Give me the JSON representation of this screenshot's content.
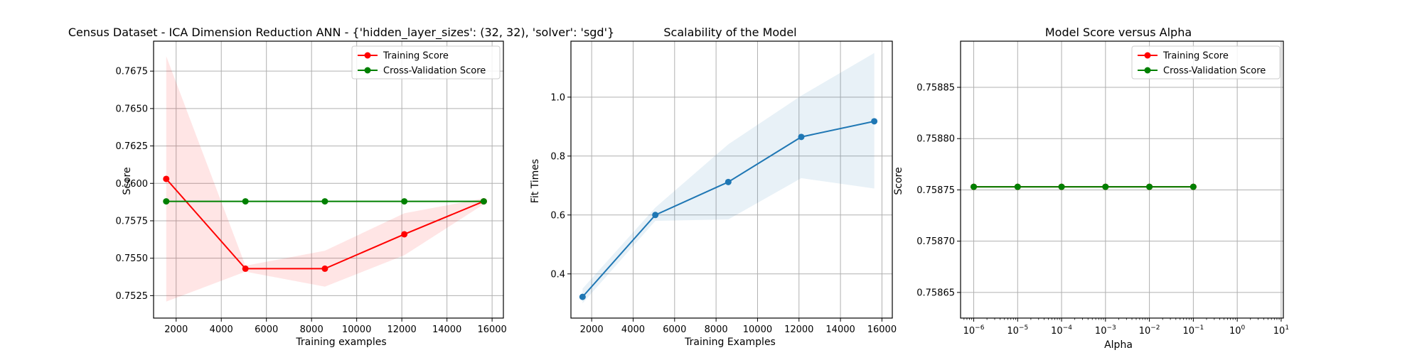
{
  "chart_data": [
    {
      "type": "line",
      "title": "Census Dataset - ICA Dimension Reduction ANN - {'hidden_layer_sizes': (32, 32), 'solver': 'sgd'}",
      "xlabel": "Training examples",
      "ylabel": "Score",
      "xlim": [
        1000,
        16500
      ],
      "ylim": [
        0.751,
        0.7695
      ],
      "grid": true,
      "legend_position": "top-right",
      "xticks": [
        2000,
        4000,
        6000,
        8000,
        10000,
        12000,
        14000,
        16000
      ],
      "yticks": [
        0.7525,
        0.755,
        0.7575,
        0.76,
        0.7625,
        0.765,
        0.7675
      ],
      "ytick_labels": [
        "0.7525",
        "0.7550",
        "0.7575",
        "0.7600",
        "0.7625",
        "0.7650",
        "0.7675"
      ],
      "x": [
        1560,
        5070,
        8590,
        12110,
        15630
      ],
      "series": [
        {
          "name": "Training Score",
          "color": "#ff0000",
          "values": [
            0.7603,
            0.7543,
            0.7543,
            0.7566,
            0.7588
          ],
          "band_low": [
            0.7521,
            0.7541,
            0.7531,
            0.7552,
            0.7586
          ],
          "band_high": [
            0.7685,
            0.7545,
            0.7555,
            0.758,
            0.759
          ]
        },
        {
          "name": "Cross-Validation Score",
          "color": "#008000",
          "values": [
            0.7588,
            0.7588,
            0.7588,
            0.7588,
            0.7588
          ]
        }
      ]
    },
    {
      "type": "line",
      "title": "Scalability of the Model",
      "xlabel": "Training Examples",
      "ylabel": "Fit Times",
      "xlim": [
        1000,
        16500
      ],
      "ylim": [
        0.25,
        1.19
      ],
      "grid": true,
      "xticks": [
        2000,
        4000,
        6000,
        8000,
        10000,
        12000,
        14000,
        16000
      ],
      "yticks": [
        0.4,
        0.6,
        0.8,
        1.0
      ],
      "ytick_labels": [
        "0.4",
        "0.6",
        "0.8",
        "1.0"
      ],
      "x": [
        1560,
        5070,
        8590,
        12110,
        15630
      ],
      "series": [
        {
          "name": "",
          "color": "#1f77b4",
          "values": [
            0.322,
            0.6,
            0.712,
            0.865,
            0.918
          ],
          "band_low": [
            0.3,
            0.58,
            0.585,
            0.725,
            0.69
          ],
          "band_high": [
            0.35,
            0.625,
            0.84,
            1.005,
            1.15
          ]
        }
      ]
    },
    {
      "type": "line",
      "title": "Model Score versus Alpha",
      "xlabel": "Alpha",
      "ylabel": "Score",
      "xscale": "log",
      "xlim": [
        -6.3,
        1.05
      ],
      "ylim": [
        0.758625,
        0.758895
      ],
      "grid": true,
      "legend_position": "top-right",
      "xticks": [
        -6,
        -5,
        -4,
        -3,
        -2,
        -1,
        0,
        1
      ],
      "xtick_labels": [
        {
          "base": "10",
          "exp": "−6"
        },
        {
          "base": "10",
          "exp": "−5"
        },
        {
          "base": "10",
          "exp": "−4"
        },
        {
          "base": "10",
          "exp": "−3"
        },
        {
          "base": "10",
          "exp": "−2"
        },
        {
          "base": "10",
          "exp": "−1"
        },
        {
          "base": "10",
          "exp": "0"
        },
        {
          "base": "10",
          "exp": "1"
        }
      ],
      "yticks": [
        0.75865,
        0.7587,
        0.75875,
        0.7588,
        0.75885
      ],
      "ytick_labels": [
        "0.75865",
        "0.75870",
        "0.75875",
        "0.75880",
        "0.75885"
      ],
      "x": [
        -6,
        -5,
        -4,
        -3,
        -2,
        -1
      ],
      "series": [
        {
          "name": "Training Score",
          "color": "#ff0000",
          "values": [
            0.758753,
            0.758753,
            0.758753,
            0.758753,
            0.758753,
            0.758753
          ]
        },
        {
          "name": "Cross-Validation Score",
          "color": "#008000",
          "values": [
            0.758753,
            0.758753,
            0.758753,
            0.758753,
            0.758753,
            0.758753
          ]
        }
      ]
    }
  ]
}
